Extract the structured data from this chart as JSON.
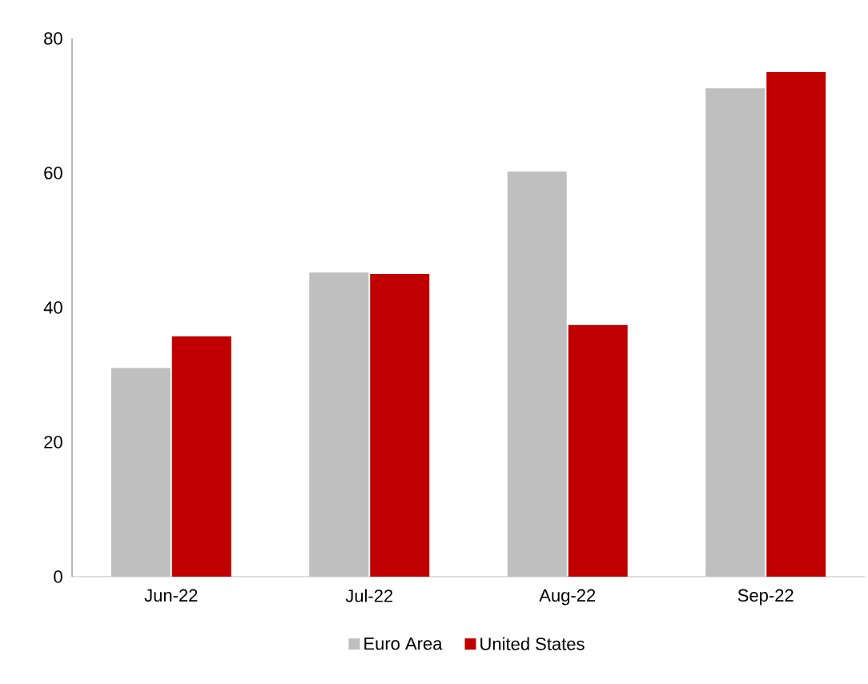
{
  "chart_data": {
    "type": "bar",
    "categories": [
      "Jun-22",
      "Jul-22",
      "Aug-22",
      "Sep-22"
    ],
    "series": [
      {
        "name": "Euro Area",
        "color": "#bfbfbf",
        "values": [
          31,
          45.2,
          60.2,
          72.6
        ]
      },
      {
        "name": "United States",
        "color": "#c00000",
        "values": [
          35.7,
          45,
          37.4,
          75
        ]
      }
    ],
    "ylim": [
      0,
      80
    ],
    "yticks": [
      0,
      20,
      40,
      60,
      80
    ],
    "grid": false,
    "legend": "bottom"
  }
}
